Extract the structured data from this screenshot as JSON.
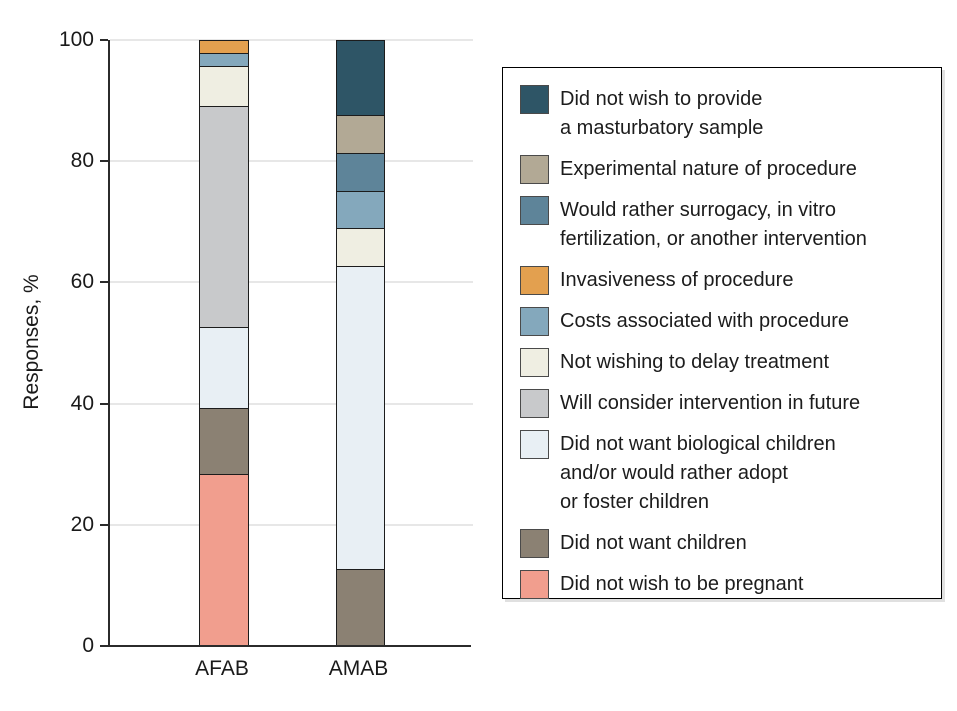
{
  "chart_data": {
    "type": "stacked-bar",
    "ylabel": "Responses, %",
    "categories": [
      "AFAB",
      "AMAB"
    ],
    "ylim": [
      0,
      100
    ],
    "yticks": [
      0,
      20,
      40,
      60,
      80,
      100
    ],
    "grid": true,
    "legend_position": "right",
    "series": [
      {
        "key": "masturbatory-sample",
        "label_lines": [
          "Did not wish to provide",
          "a masturbatory sample"
        ],
        "color": "#2E5566",
        "values": [
          0,
          12.5
        ]
      },
      {
        "key": "experimental-nature",
        "label_lines": [
          "Experimental nature of procedure"
        ],
        "color": "#B2A995",
        "values": [
          0,
          6.25
        ]
      },
      {
        "key": "rather-surrogacy-ivf",
        "label_lines": [
          "Would rather surrogacy, in vitro",
          "fertilization, or another intervention"
        ],
        "color": "#5E8499",
        "values": [
          0,
          6.25
        ]
      },
      {
        "key": "invasiveness",
        "label_lines": [
          "Invasiveness of procedure"
        ],
        "color": "#E3A04F",
        "values": [
          2.3,
          0
        ]
      },
      {
        "key": "costs",
        "label_lines": [
          "Costs associated with procedure"
        ],
        "color": "#84A8BC",
        "values": [
          2.2,
          6.25
        ]
      },
      {
        "key": "delay-treatment",
        "label_lines": [
          "Not wishing to delay treatment"
        ],
        "color": "#EFEEE2",
        "values": [
          6.5,
          6.25
        ]
      },
      {
        "key": "consider-future",
        "label_lines": [
          "Will consider intervention in future"
        ],
        "color": "#C8C9CB",
        "values": [
          36.6,
          0
        ]
      },
      {
        "key": "no-biological-children",
        "label_lines": [
          "Did not want biological children",
          "and/or would rather adopt",
          "or foster children"
        ],
        "color": "#E8EFF4",
        "values": [
          13.3,
          50
        ]
      },
      {
        "key": "no-children",
        "label_lines": [
          "Did not want children"
        ],
        "color": "#8B8173",
        "values": [
          10.9,
          12.5
        ]
      },
      {
        "key": "not-pregnant",
        "label_lines": [
          "Did not wish to be pregnant"
        ],
        "color": "#F19E8E",
        "values": [
          28.2,
          0
        ]
      }
    ]
  },
  "colors": {
    "axis": "#2B2B2B",
    "grid": "#E7E7E7",
    "text": "#1A1A1A",
    "segment_border": "#1C1C1C",
    "legend_border": "#000000"
  }
}
